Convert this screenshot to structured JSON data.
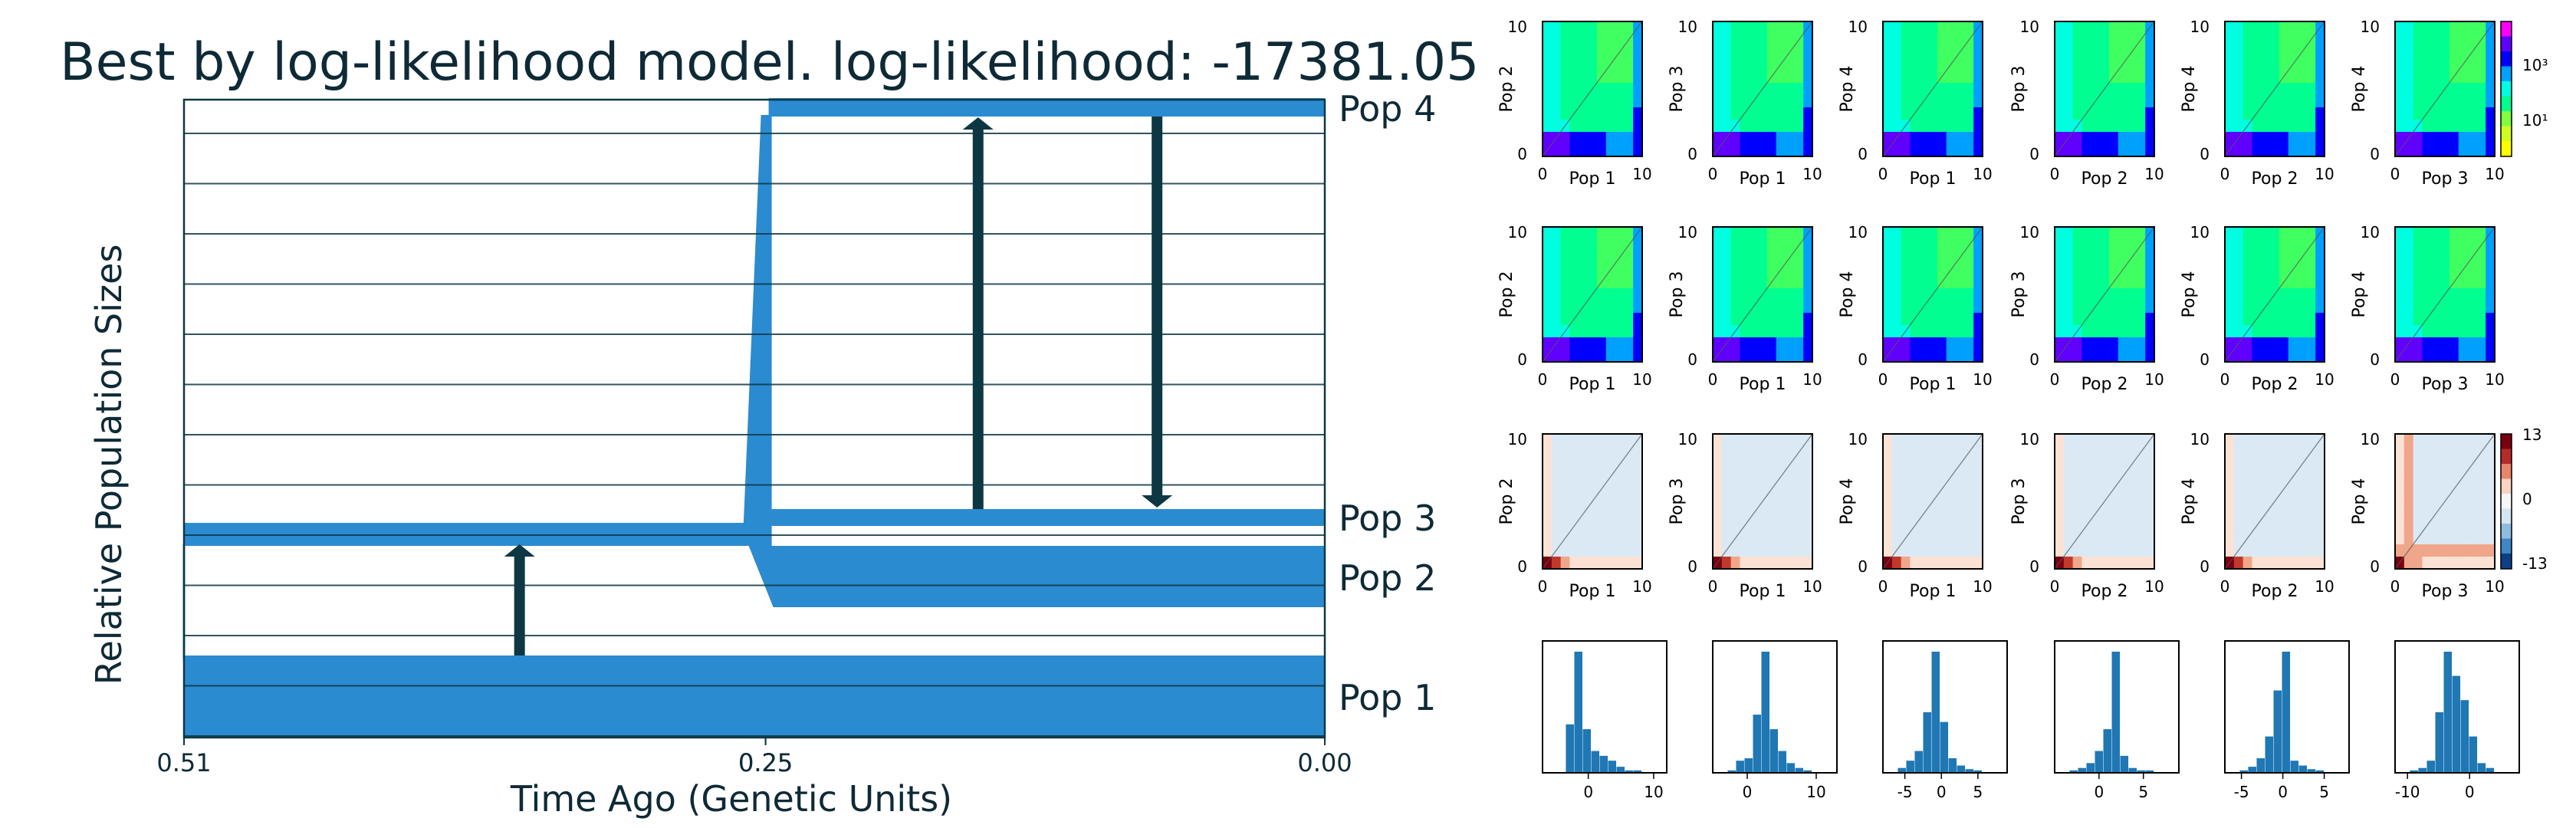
{
  "chart_data": [
    {
      "type": "demographic-model",
      "title": "Best by log-likelihood model. log-likelihood: -17381.05",
      "xlabel": "Time Ago (Genetic Units)",
      "ylabel": "Relative Population Sizes",
      "x_ticks": [
        "0.51",
        "0.25",
        "0.25",
        "0.00"
      ],
      "xlim": [
        0.51,
        0.0
      ],
      "populations": [
        "Pop 4",
        "Pop 3",
        "Pop 2",
        "Pop 1"
      ],
      "split_times": [
        0.51,
        0.25
      ],
      "colors": {
        "population": "#2b8bd0",
        "migration": "#0e3744",
        "grid": "#0e3744"
      }
    },
    {
      "type": "heatmap-grid",
      "rows": [
        {
          "kind": "data",
          "colorbar": {
            "ticks": [
              "10³",
              "10¹"
            ]
          }
        },
        {
          "kind": "model"
        },
        {
          "kind": "residuals",
          "colorbar": {
            "ticks": [
              "13",
              "0",
              "-13"
            ]
          }
        }
      ],
      "panels": [
        {
          "xlabel": "Pop 1",
          "ylabel": "Pop 2"
        },
        {
          "xlabel": "Pop 1",
          "ylabel": "Pop 3"
        },
        {
          "xlabel": "Pop 1",
          "ylabel": "Pop 4"
        },
        {
          "xlabel": "Pop 2",
          "ylabel": "Pop 3"
        },
        {
          "xlabel": "Pop 2",
          "ylabel": "Pop 4"
        },
        {
          "xlabel": "Pop 3",
          "ylabel": "Pop 4"
        }
      ],
      "axis_ticks": [
        "0",
        "10"
      ]
    },
    {
      "type": "histogram-grid",
      "panels": [
        {
          "xticks": [
            "0",
            "10"
          ],
          "xlim": [
            -7,
            12
          ]
        },
        {
          "xticks": [
            "0",
            "10"
          ],
          "xlim": [
            -5,
            13
          ]
        },
        {
          "xticks": [
            "-5",
            "0",
            "5"
          ],
          "xlim": [
            -8,
            9
          ]
        },
        {
          "xticks": [
            "0",
            "5"
          ],
          "xlim": [
            -5,
            9
          ]
        },
        {
          "xticks": [
            "-5",
            "0",
            "5"
          ],
          "xlim": [
            -7,
            8
          ]
        },
        {
          "xticks": [
            "-10",
            "0"
          ],
          "xlim": [
            -12,
            8
          ]
        }
      ]
    }
  ]
}
